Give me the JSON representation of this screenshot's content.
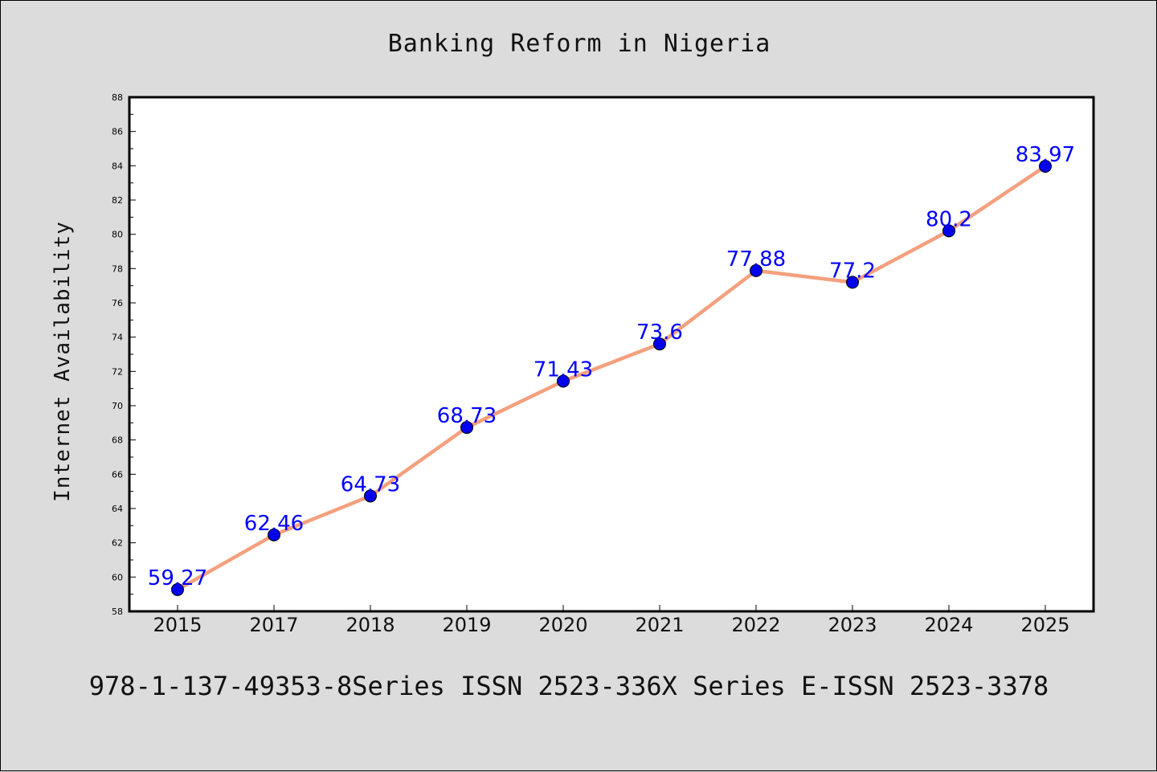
{
  "chart_data": {
    "type": "line",
    "title": "Banking Reform in Nigeria",
    "xlabel": "",
    "ylabel": "Internet Availability",
    "categories": [
      "2015",
      "2017",
      "2018",
      "2019",
      "2020",
      "2021",
      "2022",
      "2023",
      "2024",
      "2025"
    ],
    "series": [
      {
        "values": [
          59.27,
          62.46,
          64.73,
          68.73,
          71.43,
          73.6,
          77.88,
          77.2,
          80.2,
          83.97
        ],
        "line_color": "#f4a07e",
        "marker_color": "#0000ee",
        "label_color": "#0000ff"
      }
    ],
    "ylim": [
      58,
      88
    ],
    "yticks": [
      58,
      60,
      62,
      64,
      66,
      68,
      70,
      72,
      74,
      76,
      78,
      80,
      82,
      84,
      86,
      88
    ],
    "grid": false,
    "legend": "none",
    "footer": "978-1-137-49353-8Series ISSN 2523-336X Series E-ISSN 2523-3378",
    "colors": {
      "background": "#dcdcdc",
      "plot_background": "#ffffff",
      "axis": "#000000"
    }
  }
}
